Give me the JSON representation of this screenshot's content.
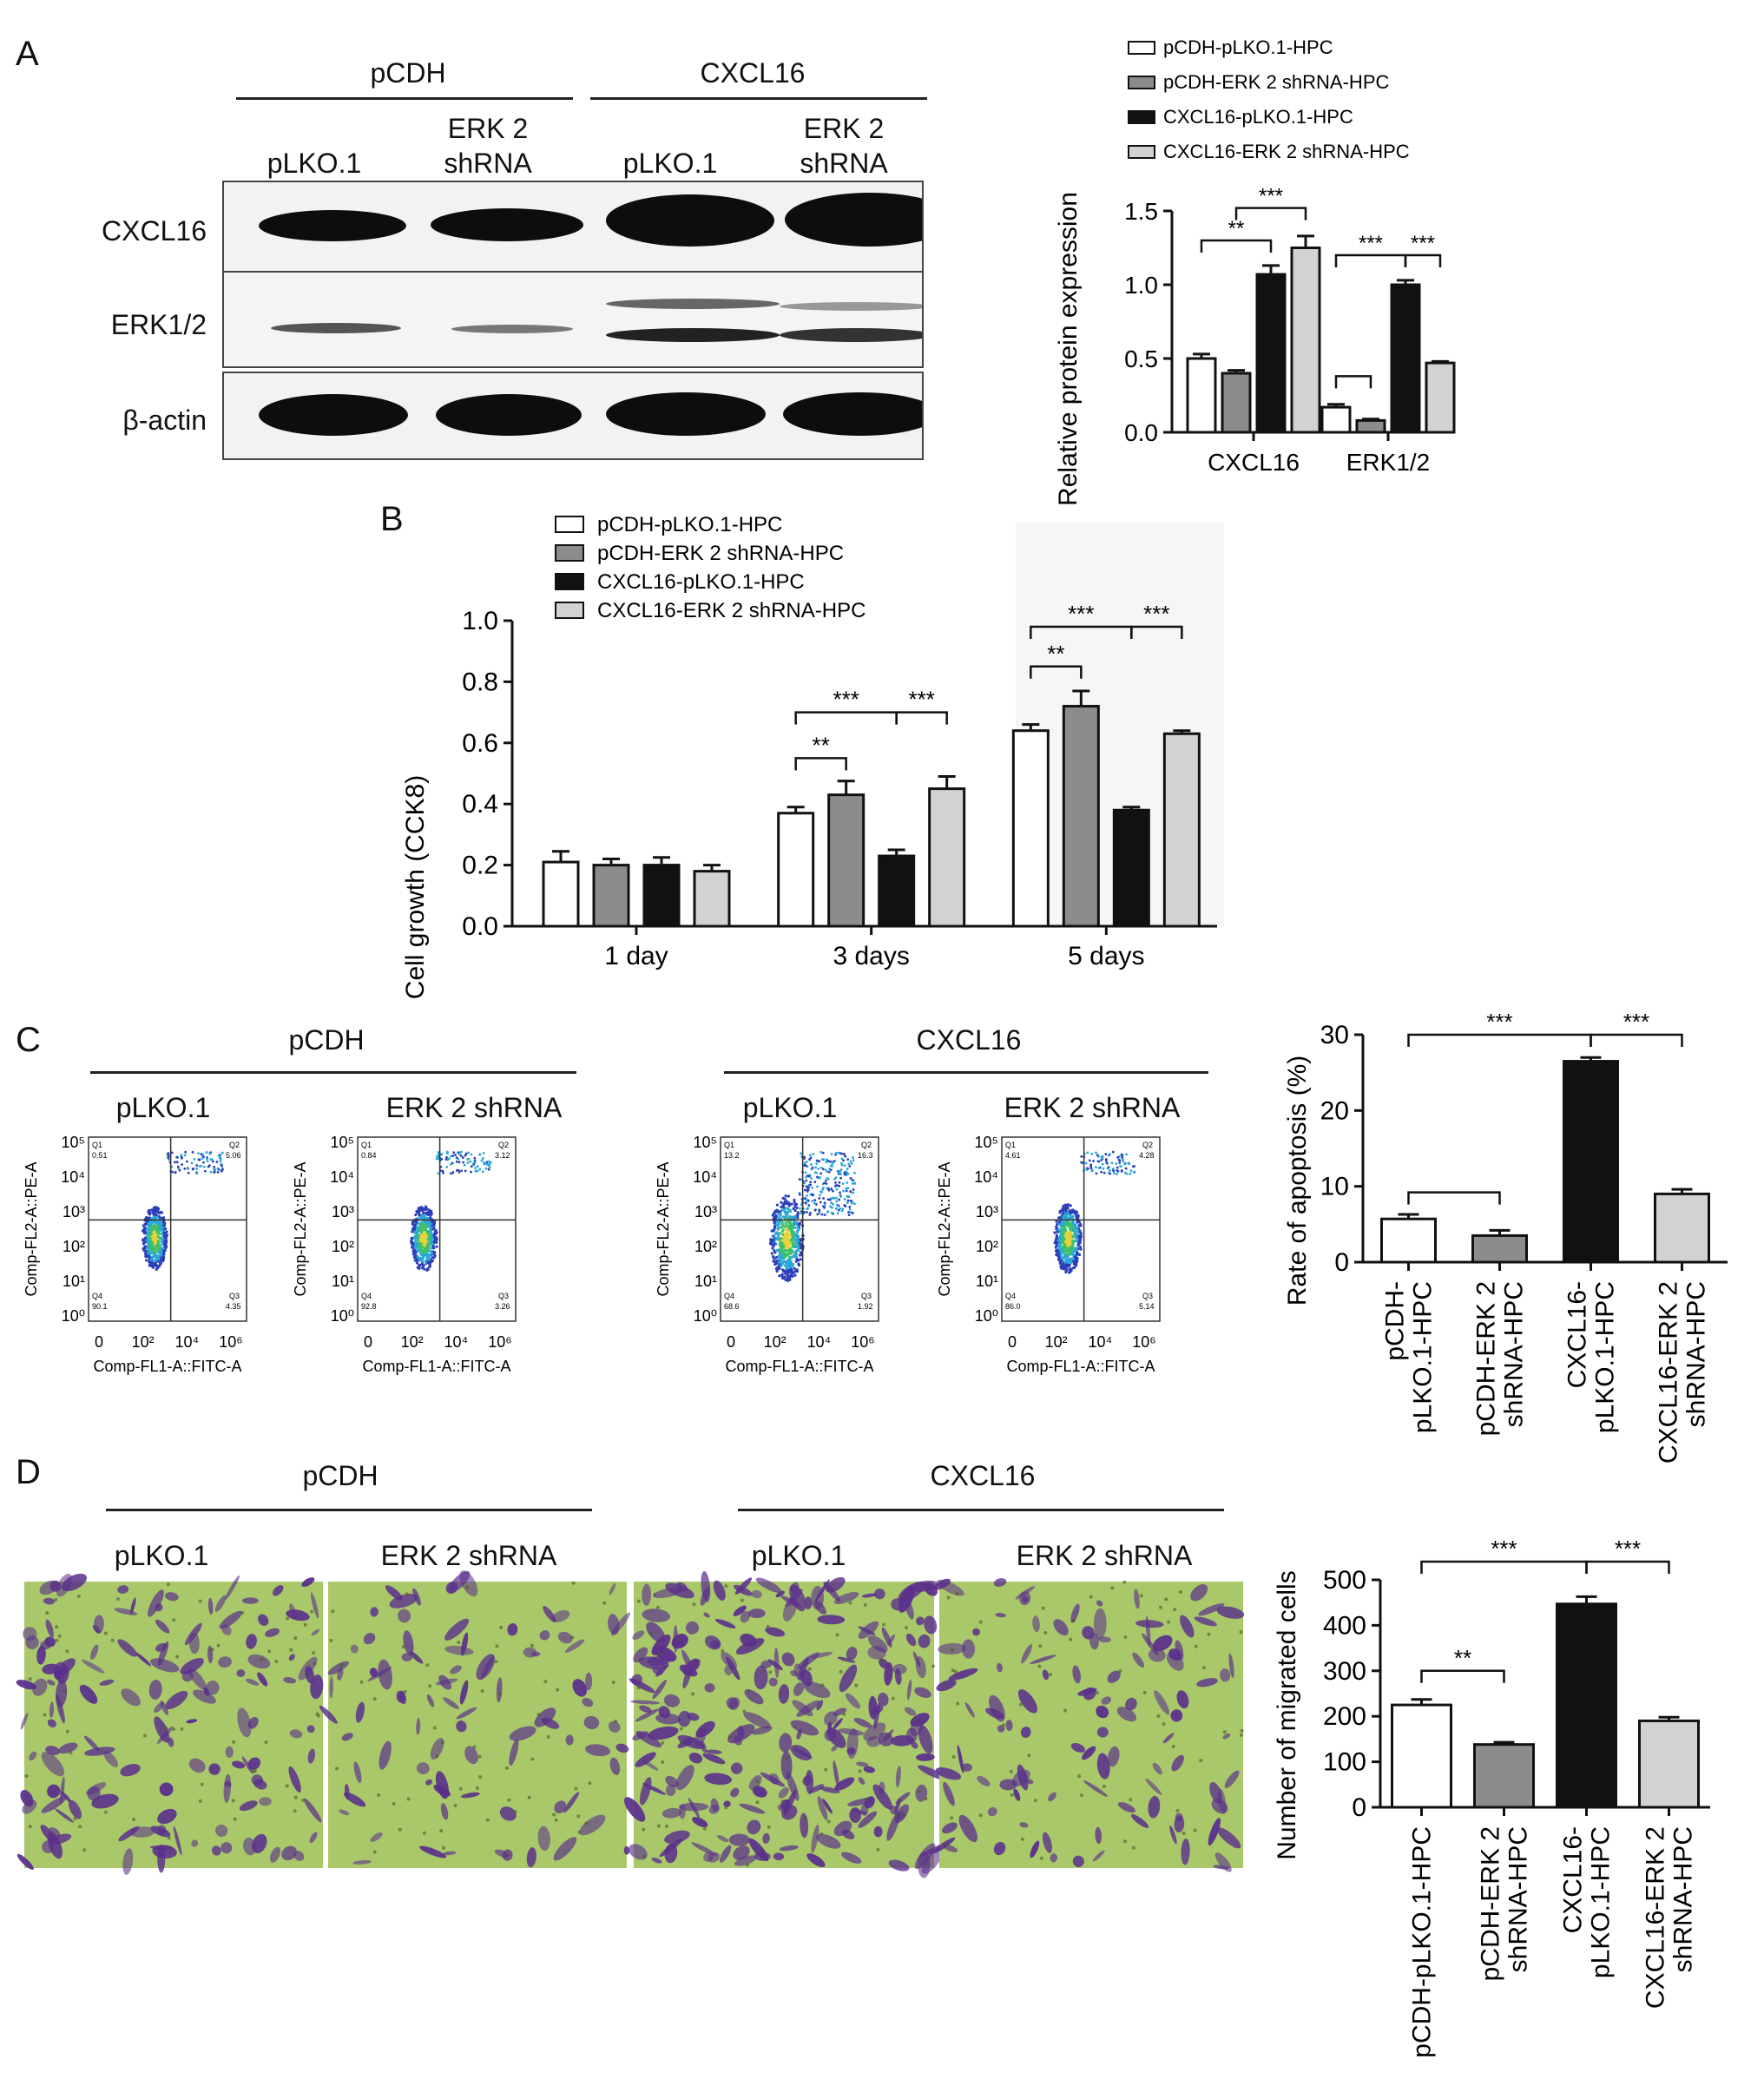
{
  "panels": {
    "A": {
      "label": "A",
      "groups": [
        "pCDH",
        "CXCL16"
      ],
      "lanes": [
        {
          "l1": "",
          "l2": "pLKO.1"
        },
        {
          "l1": "ERK 2",
          "l2": "shRNA"
        },
        {
          "l1": "",
          "l2": "pLKO.1"
        },
        {
          "l1": "ERK 2",
          "l2": "shRNA"
        }
      ],
      "blot_rows": [
        "CXCL16",
        "ERK1/2",
        "β-actin"
      ]
    },
    "B": {
      "label": "B"
    },
    "C": {
      "label": "C",
      "groups": [
        "pCDH",
        "CXCL16"
      ],
      "conditions": [
        "pLKO.1",
        "ERK 2 shRNA",
        "pLKO.1",
        "ERK 2 shRNA"
      ],
      "facs": [
        {
          "q1": "0.51",
          "q2": "5.06",
          "q3": "4.35",
          "q4": "90.1"
        },
        {
          "q1": "0.84",
          "q2": "3.12",
          "q3": "3.26",
          "q4": "92.8"
        },
        {
          "q1": "13.2",
          "q2": "16.3",
          "q3": "1.92",
          "q4": "68.6"
        },
        {
          "q1": "4.61",
          "q2": "4.28",
          "q3": "5.14",
          "q4": "86.0"
        }
      ],
      "facs_quadrant_names": [
        "Q1",
        "Q2",
        "Q3",
        "Q4"
      ],
      "facs_xlabel": "Comp-FL1-A::FITC-A",
      "facs_ylabel": "Comp-FL2-A::PE-A",
      "facs_xticks": [
        "0",
        "10²",
        "10⁴",
        "10⁶"
      ],
      "facs_yticks": [
        "10⁰",
        "10¹",
        "10²",
        "10³",
        "10⁴",
        "10⁵"
      ]
    },
    "D": {
      "label": "D",
      "groups": [
        "pCDH",
        "CXCL16"
      ],
      "conditions": [
        "pLKO.1",
        "ERK 2 shRNA",
        "pLKO.1",
        "ERK 2 shRNA"
      ]
    }
  },
  "colors": {
    "white": "#ffffff",
    "darkgray": "#8c8c8c",
    "black": "#111111",
    "lightgray": "#d2d2d2",
    "stain_bg": "#a9c86a",
    "stain_cell": "#5b2f8c"
  },
  "chart_data": [
    {
      "id": "A",
      "type": "bar",
      "categories": [
        "CXCL16",
        "ERK1/2"
      ],
      "series": [
        {
          "name": "pCDH-pLKO.1-HPC",
          "values": [
            0.5,
            0.17
          ],
          "errors": [
            0.03,
            0.02
          ]
        },
        {
          "name": "pCDH-ERK 2 shRNA-HPC",
          "values": [
            0.4,
            0.08
          ],
          "errors": [
            0.02,
            0.01
          ]
        },
        {
          "name": "CXCL16-pLKO.1-HPC",
          "values": [
            1.07,
            1.0
          ],
          "errors": [
            0.06,
            0.03
          ]
        },
        {
          "name": "CXCL16-ERK 2 shRNA-HPC",
          "values": [
            1.25,
            0.47
          ],
          "errors": [
            0.08,
            0.01
          ]
        }
      ],
      "ylabel": "Relative protein expression",
      "ylim": [
        0,
        1.5
      ],
      "yticks": [
        "0.0",
        "0.5",
        "1.0",
        "1.5"
      ],
      "legend": "top",
      "significance": [
        {
          "cat": 0,
          "from": 0,
          "to": 2,
          "label": "**",
          "level": 1.3
        },
        {
          "cat": 0,
          "from": 1,
          "to": 3,
          "label": "***",
          "level": 1.52
        },
        {
          "cat": 1,
          "from": 0,
          "to": 2,
          "label": "***",
          "level": 1.2
        },
        {
          "cat": 1,
          "from": 2,
          "to": 3,
          "label": "***",
          "level": 1.2
        },
        {
          "cat": 1,
          "from": 0,
          "to": 1,
          "label": "",
          "level": 0.38
        }
      ]
    },
    {
      "id": "B",
      "type": "bar",
      "categories": [
        "1 day",
        "3 days",
        "5 days"
      ],
      "series": [
        {
          "name": "pCDH-pLKO.1-HPC",
          "values": [
            0.21,
            0.37,
            0.64
          ],
          "errors": [
            0.035,
            0.02,
            0.02
          ]
        },
        {
          "name": "pCDH-ERK 2 shRNA-HPC",
          "values": [
            0.2,
            0.43,
            0.72
          ],
          "errors": [
            0.02,
            0.045,
            0.05
          ]
        },
        {
          "name": "CXCL16-pLKO.1-HPC",
          "values": [
            0.2,
            0.23,
            0.38
          ],
          "errors": [
            0.025,
            0.02,
            0.01
          ]
        },
        {
          "name": "CXCL16-ERK 2 shRNA-HPC",
          "values": [
            0.18,
            0.45,
            0.63
          ],
          "errors": [
            0.02,
            0.04,
            0.01
          ]
        }
      ],
      "ylabel": "Cell growth (CCK8)",
      "ylim": [
        0,
        1.0
      ],
      "yticks": [
        "0.0",
        "0.2",
        "0.4",
        "0.6",
        "0.8",
        "1.0"
      ],
      "legend": "top-left",
      "significance": [
        {
          "cat": 1,
          "from": 0,
          "to": 1,
          "label": "**",
          "level": 0.55
        },
        {
          "cat": 1,
          "from": 0,
          "to": 2,
          "label": "***",
          "level": 0.7
        },
        {
          "cat": 1,
          "from": 2,
          "to": 3,
          "label": "***",
          "level": 0.7
        },
        {
          "cat": 2,
          "from": 0,
          "to": 1,
          "label": "**",
          "level": 0.85
        },
        {
          "cat": 2,
          "from": 0,
          "to": 2,
          "label": "***",
          "level": 0.98
        },
        {
          "cat": 2,
          "from": 2,
          "to": 3,
          "label": "***",
          "level": 0.98
        }
      ]
    },
    {
      "id": "C",
      "type": "bar",
      "categories": [
        "pCDH-\npLKO.1-HPC",
        "pCDH-ERK 2\nshRNA-HPC",
        "CXCL16-\npLKO.1-HPC",
        "CXCL16-ERK 2\nshRNA-HPC"
      ],
      "values": [
        5.7,
        3.5,
        26.5,
        9.0
      ],
      "errors": [
        0.6,
        0.7,
        0.5,
        0.6
      ],
      "ylabel": "Rate of apoptosis (%)",
      "ylim": [
        0,
        30
      ],
      "yticks": [
        "0",
        "10",
        "20",
        "30"
      ],
      "significance": [
        {
          "from": 0,
          "to": 2,
          "label": "***",
          "level": 30
        },
        {
          "from": 2,
          "to": 3,
          "label": "***",
          "level": 30
        },
        {
          "from": 0,
          "to": 1,
          "label": "",
          "level": 9.2
        }
      ]
    },
    {
      "id": "D",
      "type": "bar",
      "categories": [
        "pCDH-pLKO.1-HPC",
        "pCDH-ERK 2\nshRNA-HPC",
        "CXCL16-\npLKO.1-HPC",
        "CXCL16-ERK 2\nshRNA-HPC"
      ],
      "values": [
        225,
        138,
        447,
        190
      ],
      "errors": [
        12,
        5,
        16,
        8
      ],
      "ylabel": "Number of migrated cells",
      "ylim": [
        0,
        500
      ],
      "yticks": [
        "0",
        "100",
        "200",
        "300",
        "400",
        "500"
      ],
      "significance": [
        {
          "from": 0,
          "to": 2,
          "label": "***",
          "level": 540
        },
        {
          "from": 2,
          "to": 3,
          "label": "***",
          "level": 540
        },
        {
          "from": 0,
          "to": 1,
          "label": "**",
          "level": 300
        }
      ]
    }
  ]
}
